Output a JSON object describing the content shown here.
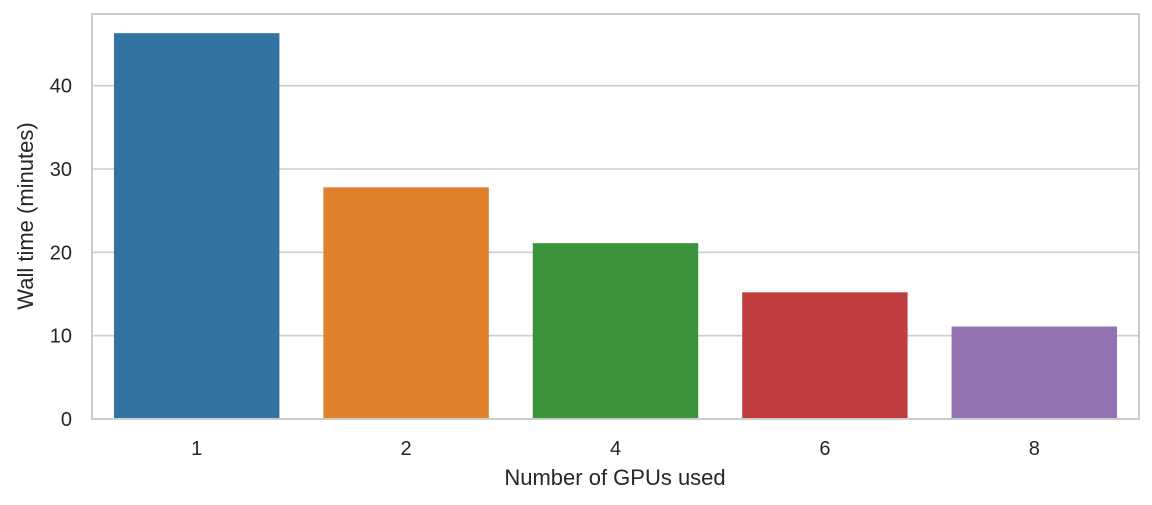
{
  "chart_data": {
    "type": "bar",
    "categories": [
      "1",
      "2",
      "4",
      "6",
      "8"
    ],
    "values": [
      46.3,
      27.8,
      21.1,
      15.2,
      11.1
    ],
    "colors": [
      "#3274a1",
      "#e1812c",
      "#3a923a",
      "#c03d3e",
      "#9372b2"
    ],
    "xlabel": "Number of GPUs used",
    "ylabel": "Wall time (minutes)",
    "ylim": [
      0,
      48.6
    ],
    "yticks": [
      0,
      10,
      20,
      30,
      40
    ],
    "ytick_labels": [
      "0",
      "10",
      "20",
      "30",
      "40"
    ],
    "grid": "horizontal",
    "grid_color": "#cccccc",
    "frame_color": "#cccccc",
    "legend": "none"
  }
}
